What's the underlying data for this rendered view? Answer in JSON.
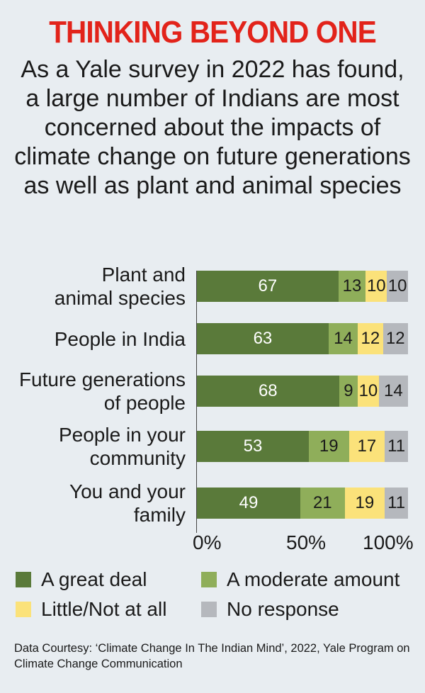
{
  "header": {
    "title": "THINKING BEYOND ONE",
    "subtitle": "As a Yale survey in 2022 has found, a large number of Indians are most concerned about the impacts of climate change on future generations as well as plant and animal species"
  },
  "footer": {
    "source": "Data Courtesy: ‘Climate Change In The Indian Mind’, 2022, Yale Program on Climate Change Communication"
  },
  "chart_data": {
    "type": "bar",
    "orientation": "horizontal",
    "stacked": true,
    "categories": [
      [
        "Plant and",
        "animal species"
      ],
      [
        "People in India"
      ],
      [
        "Future generations",
        "of  people"
      ],
      [
        "People in your",
        "community"
      ],
      [
        "You and your",
        "family"
      ]
    ],
    "series": [
      {
        "name": "A great deal",
        "color": "#5a7a3a",
        "values": [
          67,
          63,
          68,
          53,
          49
        ]
      },
      {
        "name": "A moderate amount",
        "color": "#8fae5a",
        "values": [
          13,
          14,
          9,
          19,
          21
        ]
      },
      {
        "name": "Little/Not at all",
        "color": "#fbe27a",
        "values": [
          10,
          12,
          10,
          17,
          19
        ]
      },
      {
        "name": "No response",
        "color": "#b5b8bd",
        "values": [
          10,
          12,
          14,
          11,
          11
        ]
      }
    ],
    "xticks": [
      "0%",
      "50%",
      "100%"
    ],
    "xlim": [
      0,
      100
    ],
    "grid": false,
    "legend_position": "bottom"
  }
}
